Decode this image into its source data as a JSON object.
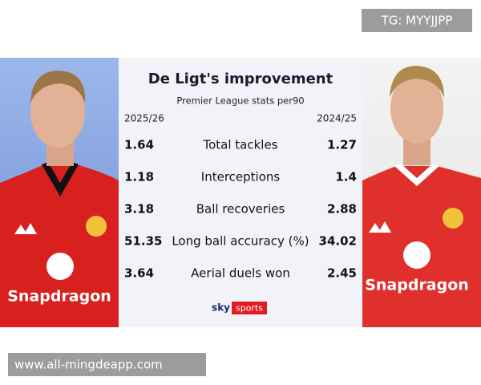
{
  "watermark_top": "TG: MYYJJPP",
  "title": "De Ligt's improvement",
  "subtitle": "Premier League stats per90",
  "table": {
    "header": [
      "2025/26",
      "2024/25"
    ],
    "rows": [
      [
        1.64,
        "Total tackles",
        1.27
      ],
      [
        1.18,
        "Interceptions",
        1.4
      ],
      [
        3.18,
        "Ball recoveries",
        2.88
      ],
      [
        51.35,
        "Long ball accuracy (%)",
        34.02
      ],
      [
        3.64,
        "Aerial duels won",
        2.45
      ]
    ]
  },
  "brand": {
    "sky": "sky",
    "sports": "sports"
  },
  "sponsor_left": "Snapdragon",
  "sponsor_right": "Snapdragon",
  "watermark_bottom": "www.all-mingdeapp.com"
}
